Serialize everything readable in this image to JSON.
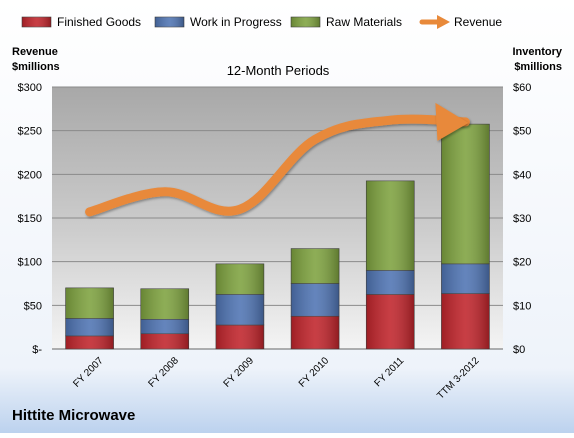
{
  "chart_data": {
    "type": "bar",
    "subtitle": "12-Month Periods",
    "company": "Hittite Microwave",
    "left_axis_label": [
      "Revenue",
      "$millions"
    ],
    "right_axis_label": [
      "Inventory",
      "$millions"
    ],
    "categories": [
      "FY 2007",
      "FY 2008",
      "FY 2009",
      "FY 2010",
      "FY 2011",
      "TTM 3-2012"
    ],
    "left_ticks": [
      "$-",
      "$50",
      "$100",
      "$150",
      "$200",
      "$250",
      "$300"
    ],
    "right_ticks": [
      "$0",
      "$10",
      "$20",
      "$30",
      "$40",
      "$50",
      "$60"
    ],
    "left_ylim": [
      0,
      300
    ],
    "right_ylim": [
      0,
      60
    ],
    "grid": true,
    "legend_position": "top",
    "series": [
      {
        "name": "Finished Goods",
        "type": "bar",
        "axis": "right",
        "color": "#c0242b",
        "values": [
          3.0,
          3.5,
          5.5,
          7.5,
          12.5,
          12.7
        ]
      },
      {
        "name": "Work in Progress",
        "type": "bar",
        "axis": "right",
        "color": "#4f74b3",
        "values": [
          4.0,
          3.3,
          7.0,
          7.5,
          5.5,
          6.8
        ]
      },
      {
        "name": "Raw Materials",
        "type": "bar",
        "axis": "right",
        "color": "#7ea23f",
        "values": [
          7.0,
          7.0,
          7.0,
          8.0,
          20.5,
          32.0
        ]
      },
      {
        "name": "Revenue",
        "type": "line",
        "axis": "left",
        "color": "#e8893a",
        "values": [
          157,
          180,
          160,
          240,
          262,
          260
        ]
      }
    ]
  }
}
